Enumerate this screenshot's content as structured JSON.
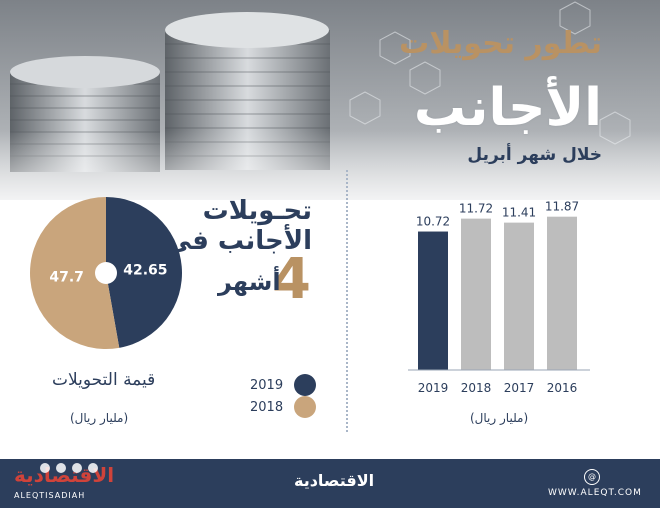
{
  "header": {
    "title_line1": "تطور تحويلات",
    "title_line2": "الأجانب",
    "subtitle": "خلال شهر أبريل"
  },
  "highlight": {
    "title_line1": "تحـويلات",
    "title_line2": "الأجانب في",
    "number": "4",
    "unit": "أشهر"
  },
  "pie": {
    "caption": "قيمة التحويلات",
    "unit": "(مليار ريال)"
  },
  "legend": [
    {
      "year": "2019",
      "color": "#2c3e5c"
    },
    {
      "year": "2018",
      "color": "#c9a57c"
    }
  ],
  "bar": {
    "unit": "(مليار ريال)"
  },
  "footer": {
    "brand": "الاقتصادية",
    "brand_left": "الاقتصادية",
    "handle": "ALEQTISADIAH",
    "website": "WWW.ALEQT.COM"
  },
  "colors": {
    "navy": "#2c3e5c",
    "gold": "#c9a57c",
    "gray": "#bdbdbd"
  },
  "chart_data": [
    {
      "type": "pie",
      "title": "قيمة التحويلات",
      "unit": "(مليار ريال)",
      "slices": [
        {
          "label": "2019",
          "value": 42.65,
          "color": "#2c3e5c"
        },
        {
          "label": "2018",
          "value": 47.7,
          "color": "#c9a57c"
        }
      ]
    },
    {
      "type": "bar",
      "title": "خلال شهر أبريل",
      "unit": "(مليار ريال)",
      "categories": [
        "2019",
        "2018",
        "2017",
        "2016"
      ],
      "values": [
        10.72,
        11.72,
        11.41,
        11.87
      ],
      "colors": [
        "#2c3e5c",
        "#bdbdbd",
        "#bdbdbd",
        "#bdbdbd"
      ],
      "ylim": [
        0,
        12
      ],
      "grid": false
    }
  ]
}
